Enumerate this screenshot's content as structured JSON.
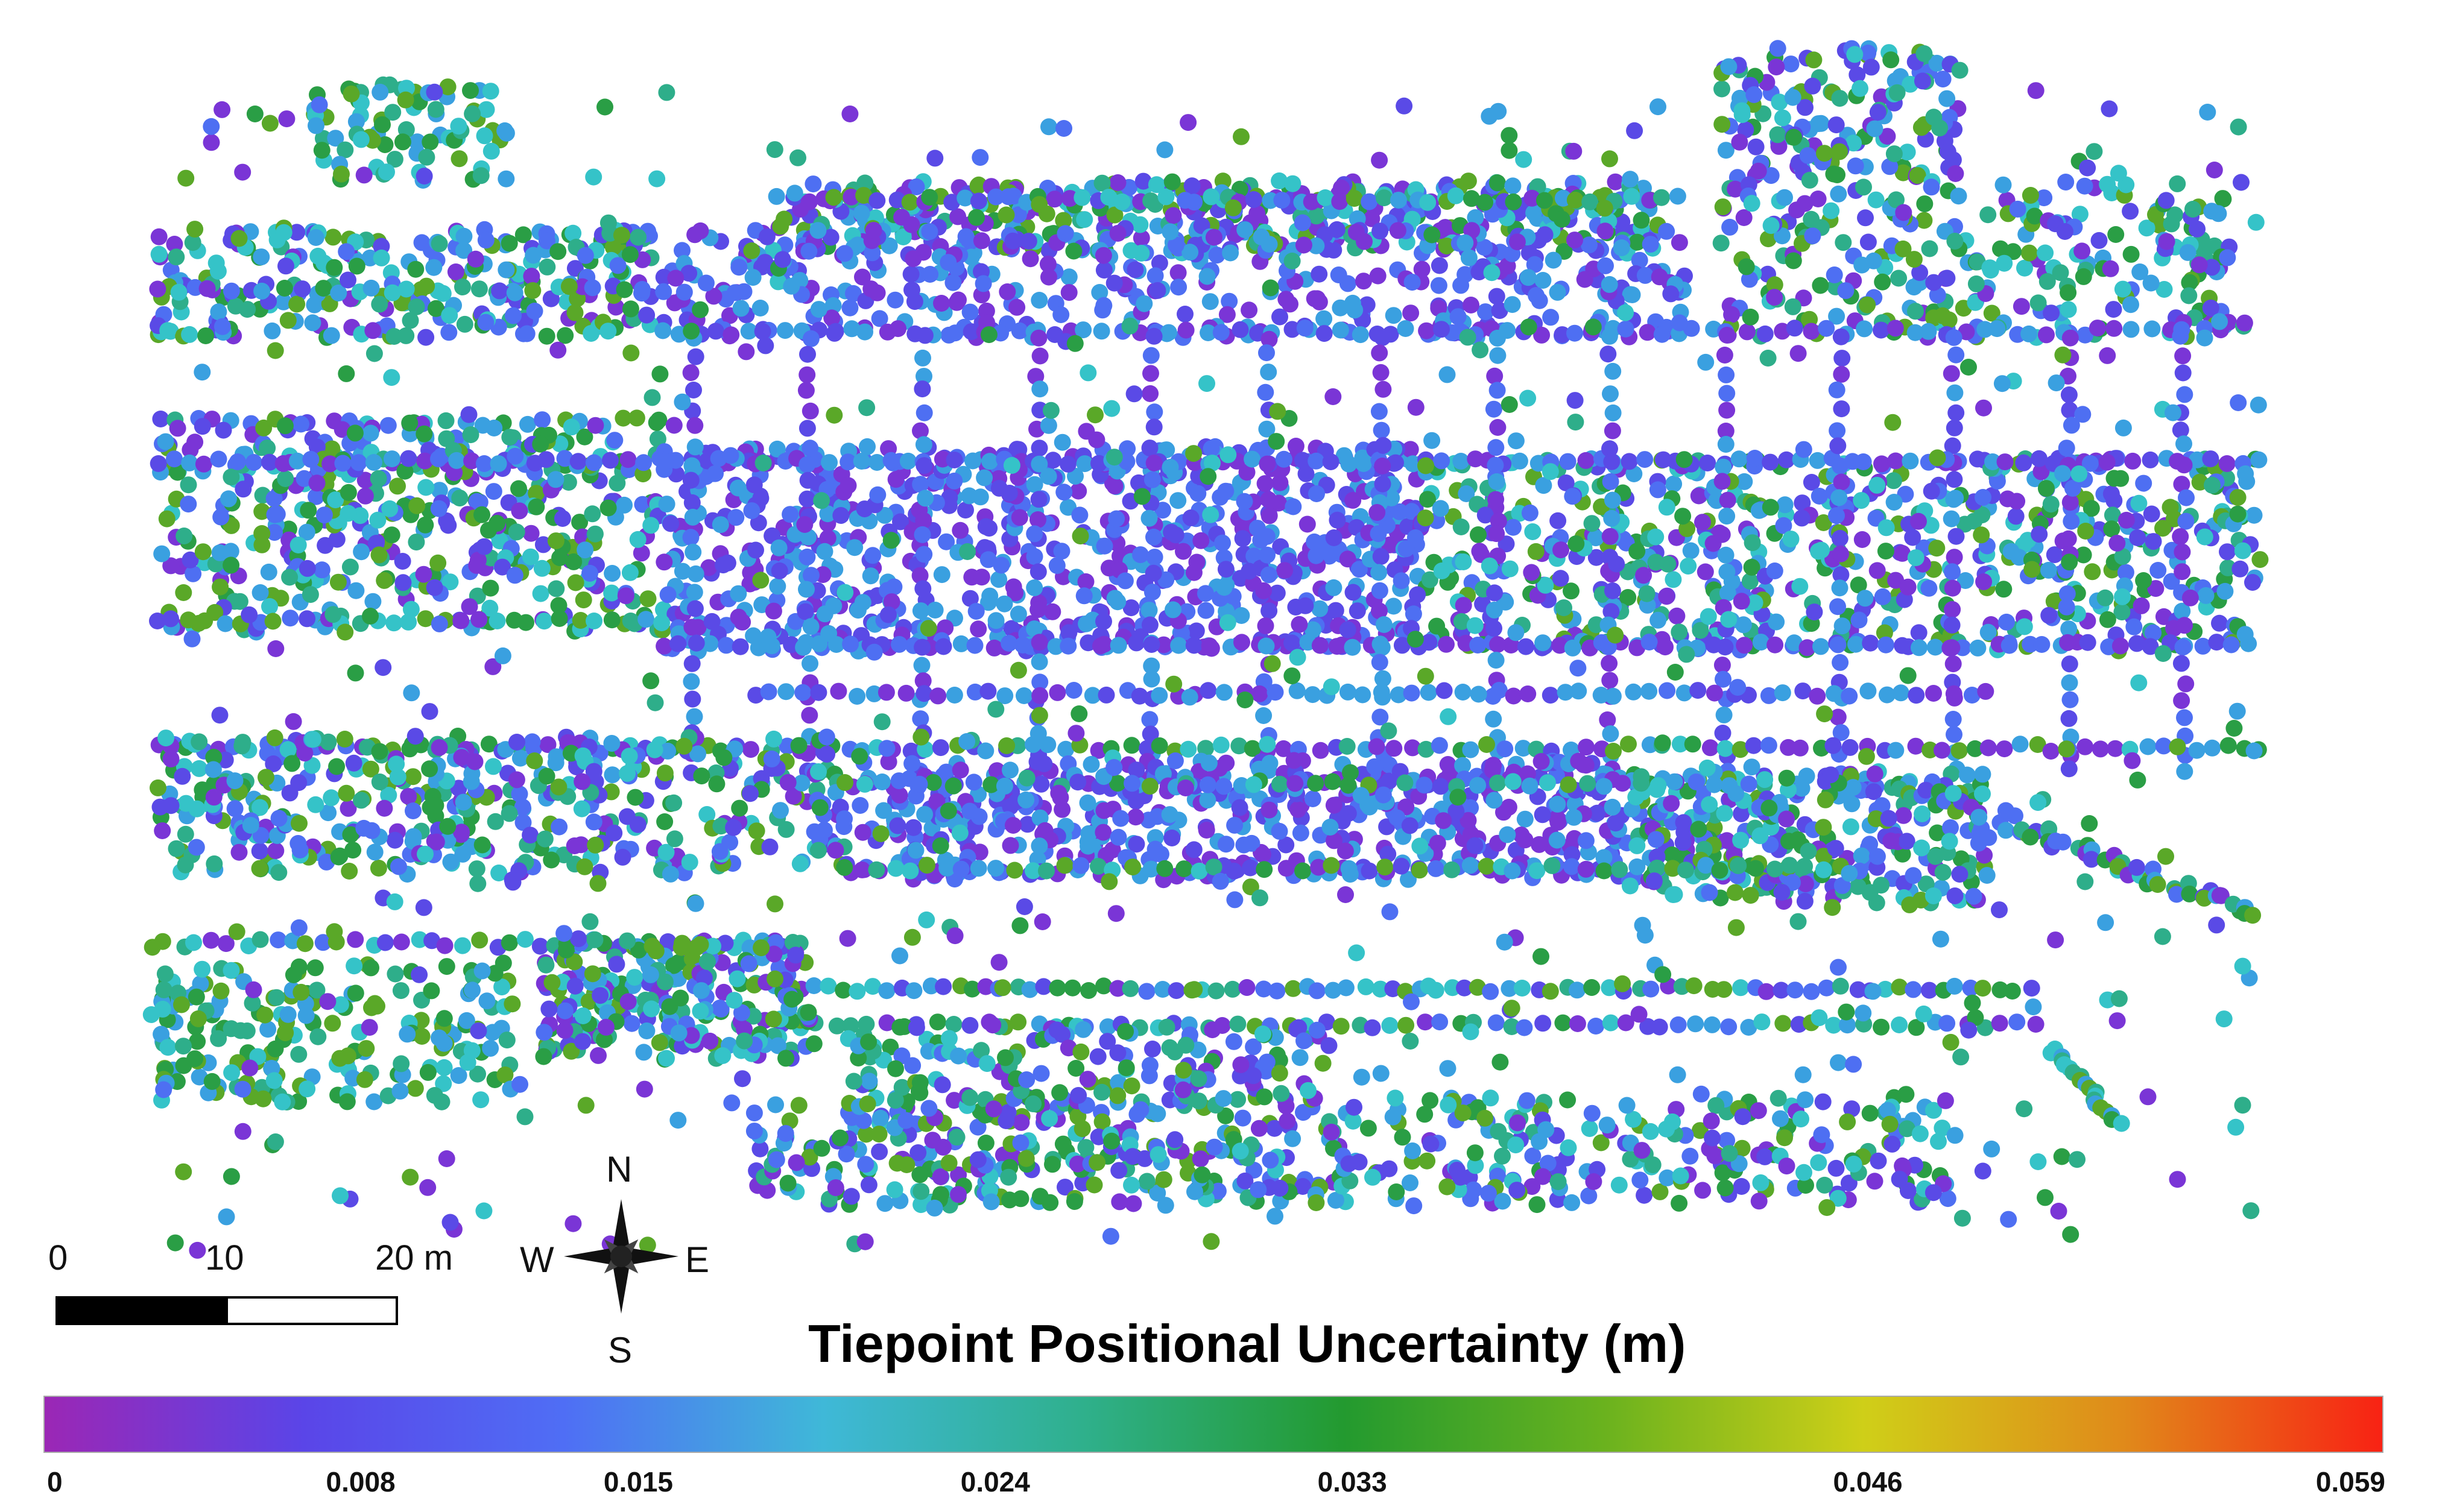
{
  "scale_bar": {
    "labels": [
      "0",
      "10",
      "20 m"
    ]
  },
  "compass": {
    "north": "N",
    "south": "S",
    "east": "E",
    "west": "W"
  },
  "legend": {
    "title": "Tiepoint Positional Uncertainty (m)",
    "min": 0,
    "max": 0.059,
    "ticks": [
      "0",
      "0.008",
      "0.015",
      "0.024",
      "0.033",
      "0.046",
      "0.059"
    ],
    "colormap": [
      "#9b27b5",
      "#5a45e8",
      "#4f6ef5",
      "#3fb8d8",
      "#2fb08c",
      "#239a2f",
      "#6ab21e",
      "#cfcf18",
      "#e08a1a",
      "#f82214"
    ]
  },
  "point_colors": [
    "#7a35d6",
    "#5a4ae6",
    "#4e6ff2",
    "#3aa0e0",
    "#35c3c8",
    "#2eae8a",
    "#2a9e45",
    "#5aa828"
  ]
}
